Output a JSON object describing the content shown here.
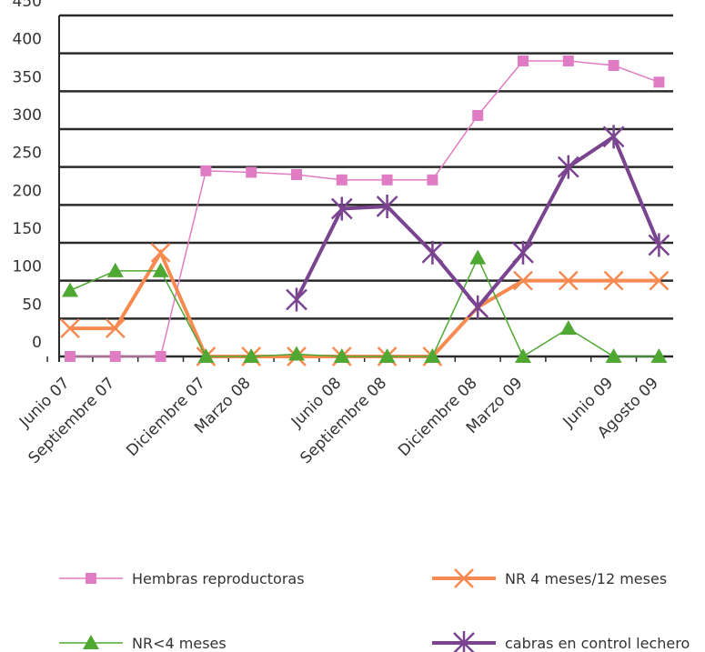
{
  "chart_data": {
    "type": "line",
    "categories": [
      "Junio 07",
      "Septiembre 07",
      null,
      "Diciembre 07",
      "Marzo 08",
      null,
      "Junio 08",
      "Septiembre 08",
      null,
      "Diciembre 08",
      "Marzo 09",
      null,
      "Junio 09",
      "Agosto 09"
    ],
    "series": [
      {
        "name": "Hembras reproductoras",
        "color": "#e07cc4",
        "marker": "square",
        "values": [
          0,
          0,
          0,
          245,
          243,
          240,
          233,
          233,
          233,
          318,
          390,
          390,
          384,
          362
        ]
      },
      {
        "name": "NR 4 meses/12 meses",
        "color": "#f78a50",
        "marker": "x",
        "values": [
          37,
          37,
          137,
          0,
          0,
          0,
          0,
          0,
          0,
          65,
          100,
          100,
          100,
          100
        ]
      },
      {
        "name": "NR<4 meses",
        "color": "#4ea832",
        "marker": "triangle",
        "values": [
          87,
          113,
          113,
          0,
          0,
          3,
          0,
          0,
          0,
          130,
          0,
          37,
          0,
          0
        ]
      },
      {
        "name": "cabras en control lechero",
        "color": "#7a4490",
        "marker": "star",
        "values": [
          null,
          null,
          null,
          null,
          null,
          75,
          195,
          198,
          137,
          65,
          137,
          250,
          290,
          147
        ]
      }
    ],
    "ylim": [
      0,
      450
    ],
    "yticks": [
      0,
      50,
      100,
      150,
      200,
      250,
      300,
      350,
      400,
      450
    ],
    "grid": true
  }
}
